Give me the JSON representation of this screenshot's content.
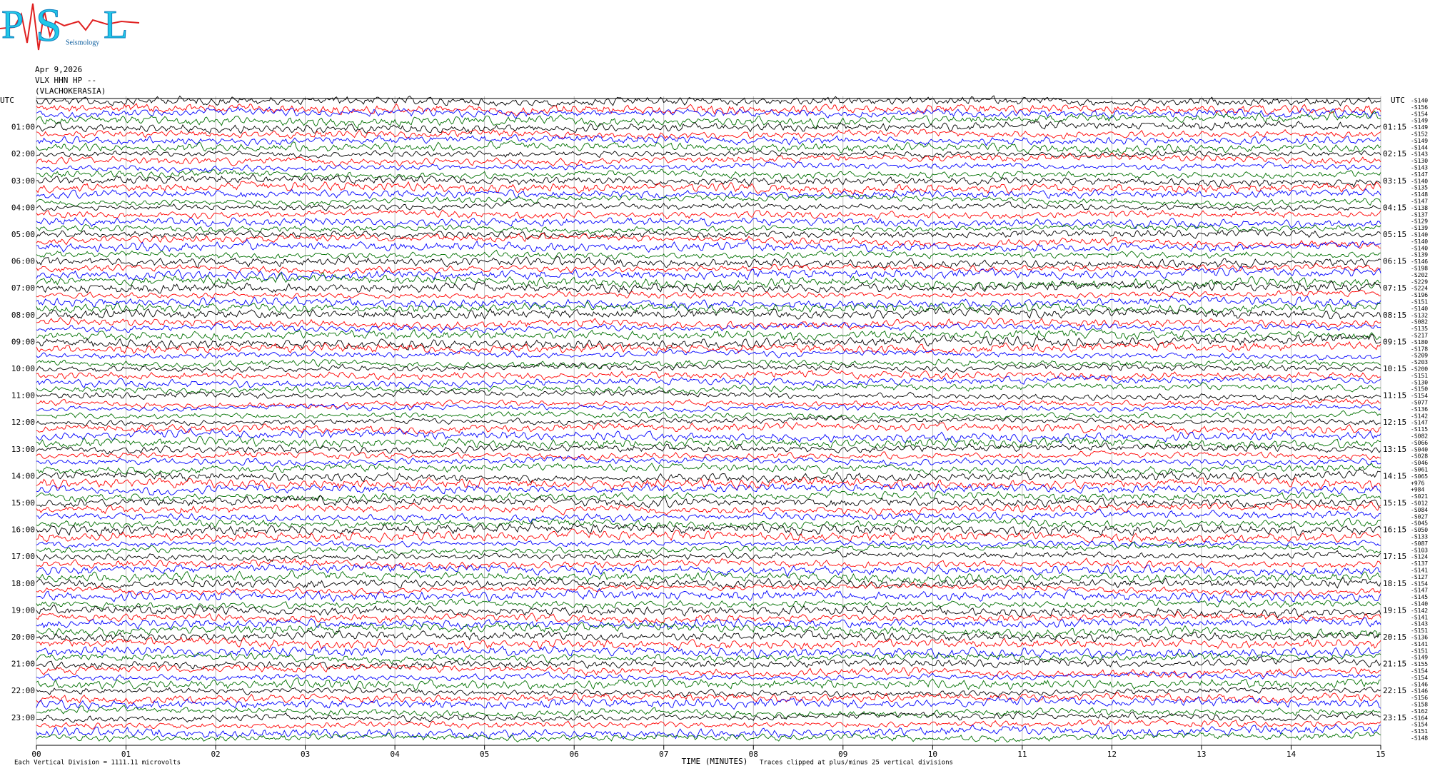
{
  "logo": {
    "letters": [
      "P",
      "S",
      "L"
    ],
    "caption": "Seismology"
  },
  "header": {
    "date": "Apr 9,2026",
    "station": "VLX HHN HP --",
    "site": "(VLACHOKERASIA)"
  },
  "helicorder": {
    "utc_left": "UTC",
    "utc_right": "UTC",
    "trace_colors": [
      "#000000",
      "#ff0000",
      "#0000ff",
      "#007000"
    ],
    "left_hours": [
      "01:00",
      "02:00",
      "03:00",
      "04:00",
      "05:00",
      "06:00",
      "07:00",
      "08:00",
      "09:00",
      "10:00",
      "11:00",
      "12:00",
      "13:00",
      "14:00",
      "15:00",
      "16:00",
      "17:00",
      "18:00",
      "19:00",
      "20:00",
      "21:00",
      "22:00",
      "23:00"
    ],
    "right_hours": [
      "01:15",
      "02:15",
      "03:15",
      "04:15",
      "05:15",
      "06:15",
      "07:15",
      "08:15",
      "09:15",
      "10:15",
      "11:15",
      "12:15",
      "13:15",
      "14:15",
      "15:15",
      "16:15",
      "17:15",
      "18:15",
      "19:15",
      "20:15",
      "21:15",
      "22:15",
      "23:15"
    ],
    "trace_offsets": [
      "-S140",
      "-S156",
      "-S154",
      "-S149",
      "-S149",
      "-S152",
      "-S149",
      "-S144",
      "-S143",
      "-S130",
      "-S143",
      "-S147",
      "-S140",
      "-S135",
      "-S148",
      "-S147",
      "-S138",
      "-S137",
      "-S129",
      "-S139",
      "-S140",
      "-S140",
      "-S140",
      "-S139",
      "-S146",
      "-S198",
      "-S202",
      "-S229",
      "-S224",
      "-S196",
      "-S151",
      "-S140",
      "-S132",
      "-S082",
      "-S135",
      "-S217",
      "-S180",
      "-S178",
      "-S209",
      "-S203",
      "-S200",
      "-S151",
      "-S130",
      "-S150",
      "-S154",
      "-S077",
      "-S136",
      "-S142",
      "-S147",
      "-S115",
      "-S082",
      "-S066",
      "-S040",
      "-S028",
      "-S046",
      "-S061",
      "-S065",
      "+976",
      "+984",
      "-S021",
      "-S012",
      "-S084",
      "-S027",
      "-S045",
      "-S050",
      "-S133",
      "-S087",
      "-S103",
      "-S124",
      "-S137",
      "-S141",
      "-S127",
      "-S154",
      "-S147",
      "-S145",
      "-S140",
      "-S142",
      "-S141",
      "-S143",
      "-S151",
      "-S136",
      "-S141",
      "-S151",
      "-S149",
      "-S155",
      "-S154",
      "-S154",
      "-S146",
      "-S146",
      "-S156",
      "-S158",
      "-S162",
      "-S164",
      "-S154",
      "-S151",
      "-S148"
    ],
    "x_ticks": [
      "00",
      "01",
      "02",
      "03",
      "04",
      "05",
      "06",
      "07",
      "08",
      "09",
      "10",
      "11",
      "12",
      "13",
      "14",
      "15"
    ],
    "x_label": "TIME (MINUTES)",
    "scale_note": "Each Vertical Division = 1111.11 microvolts",
    "clip_note": "Traces clipped at plus/minus 25 vertical divisions"
  }
}
